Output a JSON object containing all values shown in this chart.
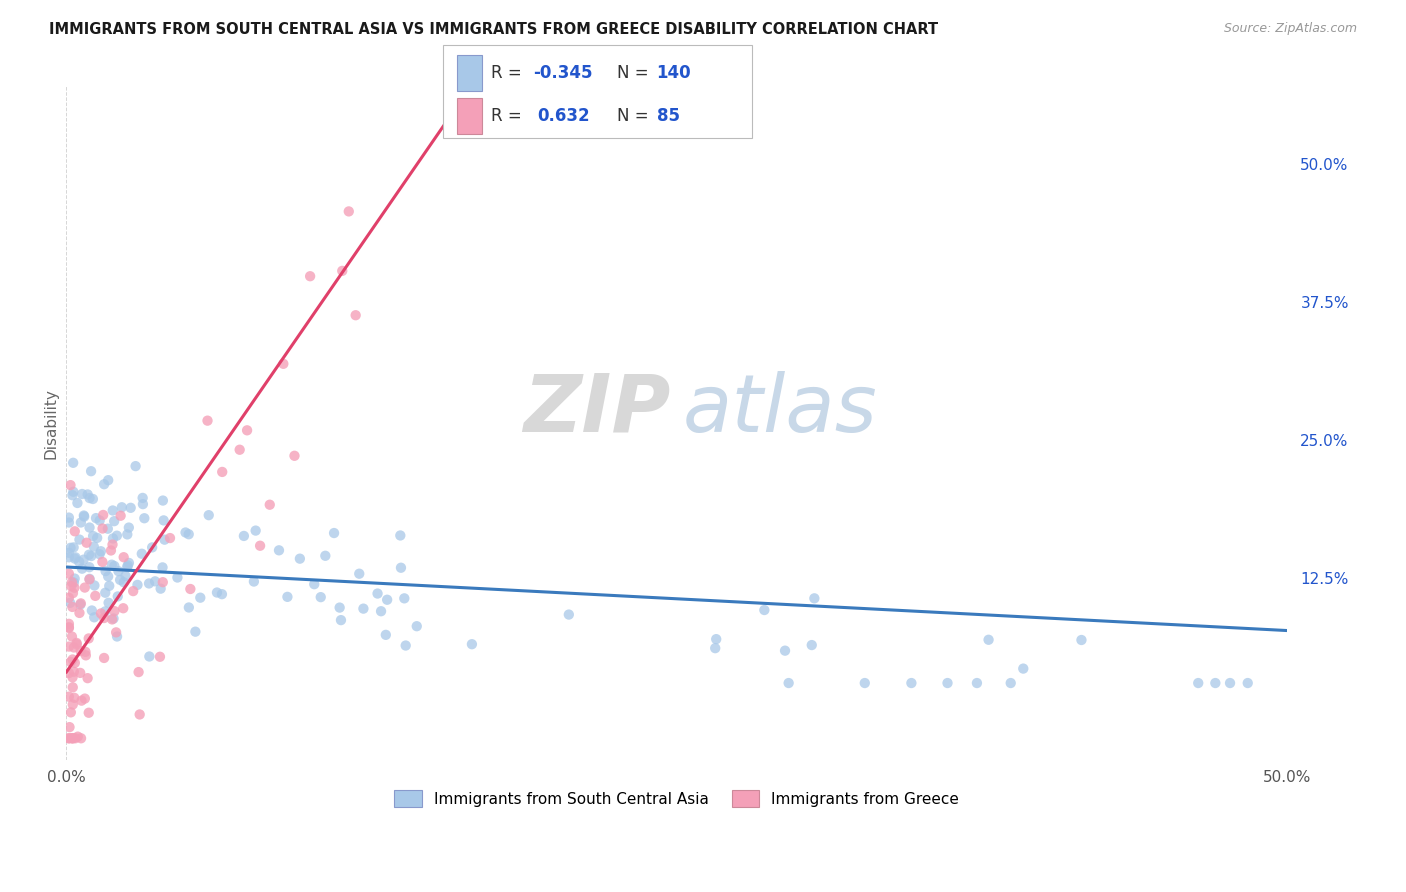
{
  "title": "IMMIGRANTS FROM SOUTH CENTRAL ASIA VS IMMIGRANTS FROM GREECE DISABILITY CORRELATION CHART",
  "source": "Source: ZipAtlas.com",
  "ylabel": "Disability",
  "right_yticks": [
    "50.0%",
    "37.5%",
    "25.0%",
    "12.5%"
  ],
  "right_ytick_vals": [
    0.5,
    0.375,
    0.25,
    0.125
  ],
  "xmin": 0.0,
  "xmax": 0.5,
  "ymin": -0.04,
  "ymax": 0.57,
  "color_blue": "#a8c8e8",
  "color_pink": "#f4a0b8",
  "color_blue_line": "#3a7abd",
  "color_pink_line": "#e0406a",
  "color_blue_text": "#2255cc",
  "legend_r1_val": "-0.345",
  "legend_n1_val": "140",
  "legend_r2_val": "0.632",
  "legend_n2_val": "85"
}
